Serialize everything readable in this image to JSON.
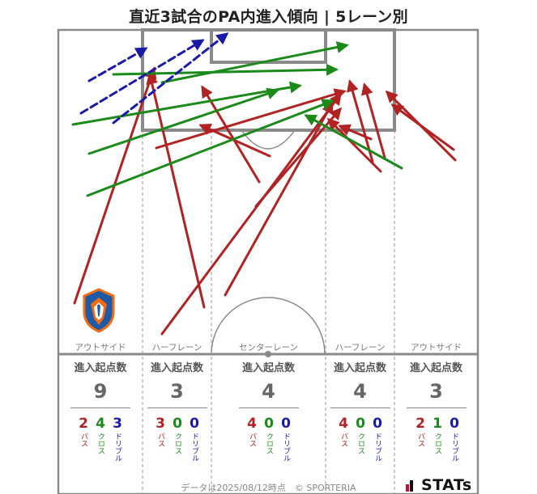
{
  "title": "直近3試合のPA内進入傾向 | 5レーン別",
  "lanes": [
    {
      "label": "アウトサイド",
      "stat_header": "進入起点数",
      "count": "9",
      "pass": "2",
      "cross": "4",
      "dribble": "3"
    },
    {
      "label": "ハーフレーン",
      "stat_header": "進入起点数",
      "count": "3",
      "pass": "3",
      "cross": "0",
      "dribble": "0"
    },
    {
      "label": "センターレーン",
      "stat_header": "進入起点数",
      "count": "4",
      "pass": "4",
      "cross": "0",
      "dribble": "0"
    },
    {
      "label": "ハーフレーン",
      "stat_header": "進入起点数",
      "count": "4",
      "pass": "4",
      "cross": "0",
      "dribble": "0"
    },
    {
      "label": "アウトサイド",
      "stat_header": "進入起点数",
      "count": "3",
      "pass": "2",
      "cross": "1",
      "dribble": "0"
    }
  ],
  "legend": {
    "pass": "パス",
    "cross": "クロス",
    "dribble": "ドリブル"
  },
  "footer": "データは2025/08/12時点　© SPORTERIA",
  "brand": "STATs",
  "colors": {
    "pass": "#b22222",
    "cross": "#1a8a1a",
    "dribble": "#1a1aa8"
  },
  "entries": {
    "pass": [
      [
        92,
        375,
        190,
        85
      ],
      [
        252,
        380,
        185,
        92
      ],
      [
        200,
        413,
        420,
        117
      ],
      [
        278,
        365,
        410,
        128
      ],
      [
        316,
        255,
        420,
        135
      ],
      [
        320,
        225,
        250,
        108
      ],
      [
        333,
        193,
        248,
        155
      ],
      [
        193,
        183,
        425,
        113
      ],
      [
        470,
        212,
        406,
        148
      ],
      [
        458,
        172,
        420,
        156
      ],
      [
        560,
        185,
        485,
        130
      ],
      [
        562,
        198,
        478,
        114
      ],
      [
        475,
        195,
        450,
        105
      ],
      [
        460,
        200,
        432,
        101
      ]
    ],
    "cross": [
      [
        110,
        190,
        342,
        112
      ],
      [
        90,
        154,
        370,
        106
      ],
      [
        108,
        242,
        410,
        125
      ],
      [
        140,
        92,
        415,
        86
      ],
      [
        200,
        102,
        428,
        56
      ],
      [
        496,
        208,
        378,
        143
      ]
    ],
    "dribble": [
      [
        110,
        100,
        180,
        60
      ],
      [
        100,
        140,
        250,
        50
      ],
      [
        140,
        152,
        280,
        42
      ]
    ]
  }
}
